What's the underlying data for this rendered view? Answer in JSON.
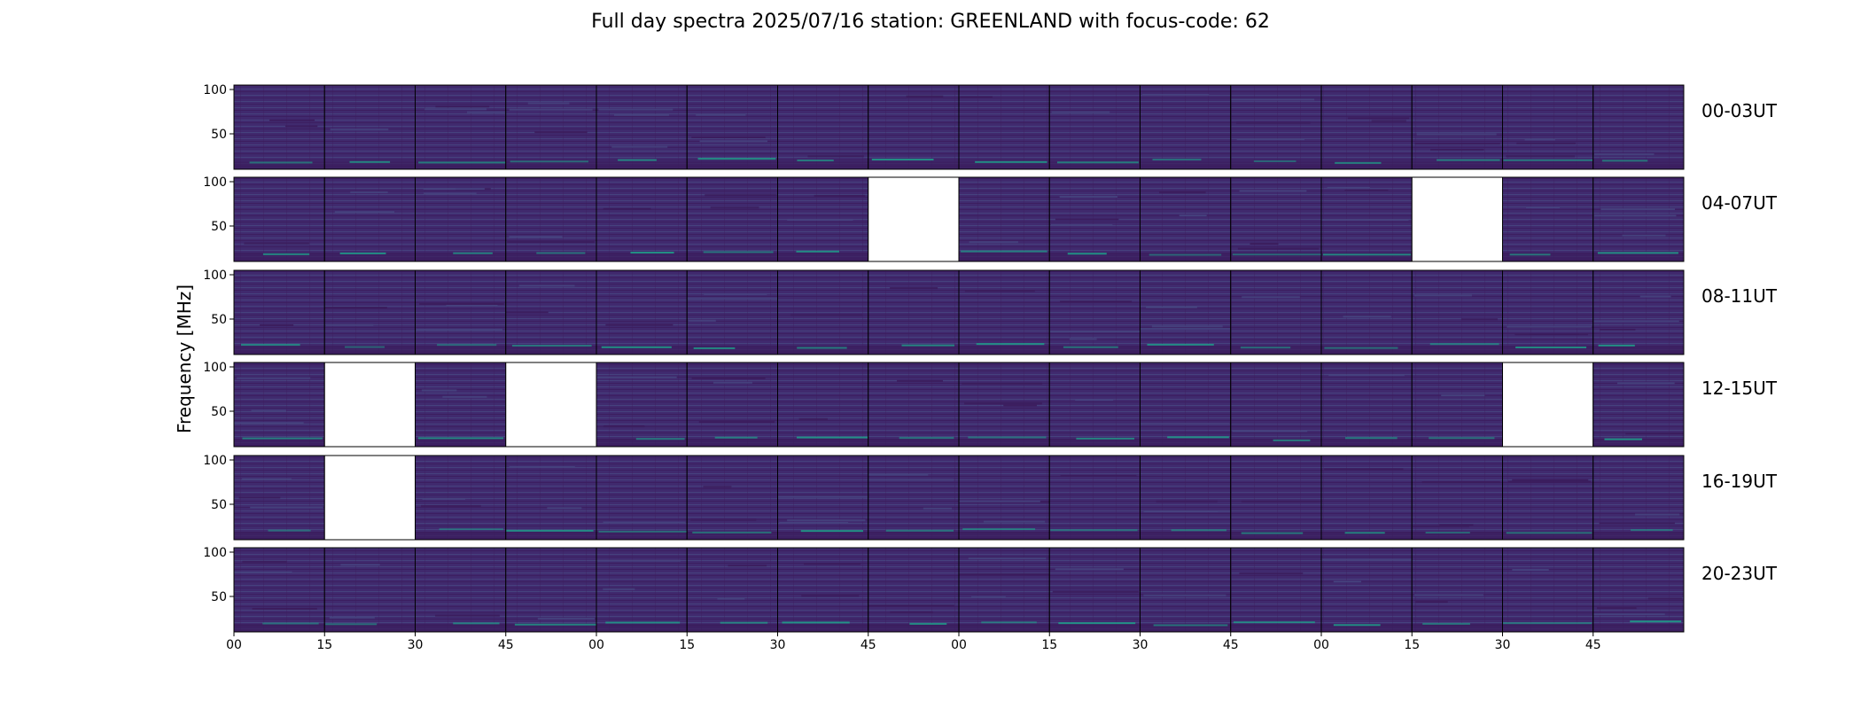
{
  "title": "Full day spectra 2025/07/16 station: GREENLAND with focus-code: 62",
  "colors": {
    "background": "#ffffff",
    "missing_panel": "#ffffff",
    "spectrum_base": "#402a6e",
    "spectrum_light": "#46427e",
    "spectrum_dark": "#3b1c5c",
    "spectrum_highlight": "#1f9e89"
  },
  "chart_data": {
    "type": "heatmap",
    "title": "Full day spectra 2025/07/16 station: GREENLAND with focus-code: 62",
    "ylabel": "Frequency [MHz]",
    "xlabel": "",
    "ylim": [
      10,
      105
    ],
    "yticks": [
      50,
      100
    ],
    "xtick_labels": [
      "00",
      "15",
      "30",
      "45",
      "00",
      "15",
      "30",
      "45",
      "00",
      "15",
      "30",
      "45",
      "00",
      "15",
      "30",
      "45"
    ],
    "colormap": "viridis",
    "panels_per_row": 16,
    "rows": [
      {
        "label": "00-03UT",
        "missing": []
      },
      {
        "label": "04-07UT",
        "missing": [
          7,
          13
        ]
      },
      {
        "label": "08-11UT",
        "missing": []
      },
      {
        "label": "12-15UT",
        "missing": [
          1,
          3,
          14
        ]
      },
      {
        "label": "16-19UT",
        "missing": [
          1
        ]
      },
      {
        "label": "20-23UT",
        "missing": []
      }
    ]
  }
}
